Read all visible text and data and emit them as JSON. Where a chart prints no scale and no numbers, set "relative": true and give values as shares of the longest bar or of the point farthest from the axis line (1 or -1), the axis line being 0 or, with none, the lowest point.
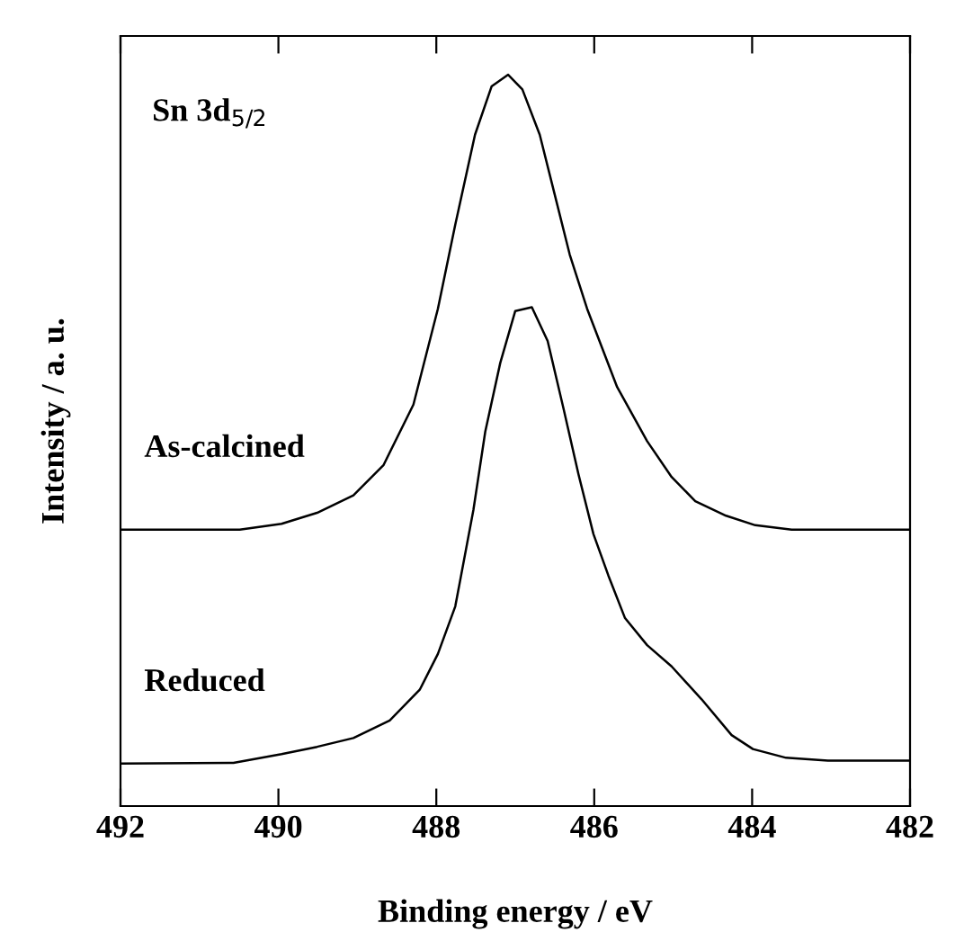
{
  "chart_data": {
    "type": "line",
    "relative": true,
    "xlabel": "Binding energy / eV",
    "ylabel": "Intensity / a. u.",
    "xlim": [
      492,
      482
    ],
    "xticks": [
      492,
      490,
      488,
      486,
      484,
      482
    ],
    "tick_labels": "x",
    "grid": false,
    "legend": false,
    "annotations": [
      "Sn 3d$_{5/2}$"
    ],
    "series": [
      {
        "name": "As-calcined",
        "color": "#000000",
        "x": [
          492,
          490.49,
          489.96,
          489.51,
          489.05,
          488.67,
          488.29,
          487.98,
          487.76,
          487.51,
          487.3,
          487.09,
          486.91,
          486.69,
          486.5,
          486.31,
          486.09,
          485.71,
          485.33,
          485.02,
          484.72,
          484.33,
          483.96,
          483.5,
          482
        ],
        "values": [
          0.378,
          0.378,
          0.386,
          0.401,
          0.425,
          0.466,
          0.549,
          0.68,
          0.795,
          0.918,
          0.984,
          1.0,
          0.98,
          0.918,
          0.836,
          0.754,
          0.68,
          0.573,
          0.499,
          0.45,
          0.417,
          0.397,
          0.384,
          0.378,
          0.378
        ]
      },
      {
        "name": "Reduced",
        "color": "#000000",
        "x": [
          492,
          490.57,
          489.96,
          489.51,
          489.05,
          488.59,
          488.21,
          487.98,
          487.76,
          487.53,
          487.38,
          487.19,
          487.0,
          486.79,
          486.59,
          486.39,
          486.2,
          486.01,
          485.82,
          485.61,
          485.33,
          485.02,
          484.64,
          484.26,
          483.99,
          483.57,
          483.04,
          482
        ],
        "values": [
          0.058,
          0.059,
          0.071,
          0.081,
          0.093,
          0.117,
          0.159,
          0.208,
          0.273,
          0.405,
          0.512,
          0.606,
          0.677,
          0.682,
          0.636,
          0.544,
          0.454,
          0.372,
          0.315,
          0.257,
          0.22,
          0.191,
          0.146,
          0.097,
          0.078,
          0.066,
          0.062,
          0.062
        ]
      }
    ]
  }
}
